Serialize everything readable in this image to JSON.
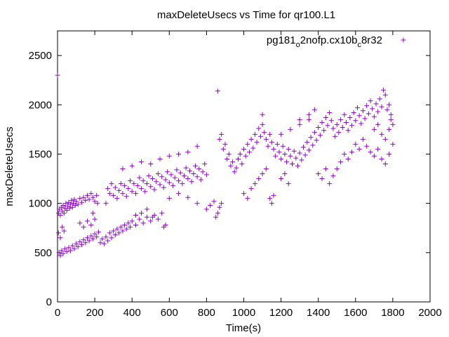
{
  "chart_data": {
    "type": "scatter",
    "title": "maxDeleteUsecs vs Time for qr100.L1",
    "xlabel": "Time(s)",
    "ylabel": "maxDeleteUsecs",
    "xlim": [
      0,
      2000
    ],
    "ylim": [
      0,
      2750
    ],
    "xticks": [
      0,
      200,
      400,
      600,
      800,
      1000,
      1200,
      1400,
      1600,
      1800,
      2000
    ],
    "yticks": [
      0,
      500,
      1000,
      1500,
      2000,
      2500
    ],
    "grid": false,
    "legend_position": "top-right",
    "series": [
      {
        "name_parts": {
          "a": "pg181",
          "b": "o",
          "c": "2nofp.cx10b",
          "d": "c",
          "e": "8r32"
        },
        "color": "#9400d3",
        "marker": "plus",
        "points": [
          [
            0,
            2300
          ],
          [
            5,
            900
          ],
          [
            10,
            940
          ],
          [
            15,
            880
          ],
          [
            20,
            960
          ],
          [
            25,
            920
          ],
          [
            30,
            980
          ],
          [
            35,
            900
          ],
          [
            40,
            950
          ],
          [
            45,
            1000
          ],
          [
            50,
            930
          ],
          [
            55,
            970
          ],
          [
            60,
            1010
          ],
          [
            65,
            950
          ],
          [
            70,
            990
          ],
          [
            75,
            1030
          ],
          [
            80,
            960
          ],
          [
            85,
            1000
          ],
          [
            90,
            1040
          ],
          [
            95,
            980
          ],
          [
            100,
            1020
          ],
          [
            110,
            990
          ],
          [
            120,
            1050
          ],
          [
            130,
            1010
          ],
          [
            140,
            1060
          ],
          [
            150,
            1030
          ],
          [
            160,
            1080
          ],
          [
            170,
            1040
          ],
          [
            180,
            1100
          ],
          [
            190,
            1060
          ],
          [
            200,
            1020
          ],
          [
            210,
            1080
          ],
          [
            215,
            1000
          ],
          [
            8,
            500
          ],
          [
            15,
            470
          ],
          [
            22,
            520
          ],
          [
            30,
            490
          ],
          [
            40,
            540
          ],
          [
            50,
            510
          ],
          [
            60,
            550
          ],
          [
            70,
            520
          ],
          [
            80,
            570
          ],
          [
            90,
            540
          ],
          [
            100,
            590
          ],
          [
            110,
            560
          ],
          [
            120,
            610
          ],
          [
            130,
            580
          ],
          [
            140,
            630
          ],
          [
            150,
            600
          ],
          [
            160,
            650
          ],
          [
            170,
            620
          ],
          [
            180,
            670
          ],
          [
            190,
            640
          ],
          [
            200,
            690
          ],
          [
            210,
            660
          ],
          [
            220,
            710
          ],
          [
            5,
            700
          ],
          [
            15,
            650
          ],
          [
            25,
            760
          ],
          [
            35,
            720
          ],
          [
            120,
            800
          ],
          [
            140,
            760
          ],
          [
            160,
            820
          ],
          [
            180,
            780
          ],
          [
            200,
            840
          ],
          [
            190,
            900
          ],
          [
            230,
            600
          ],
          [
            240,
            640
          ],
          [
            250,
            590
          ],
          [
            260,
            660
          ],
          [
            270,
            620
          ],
          [
            280,
            700
          ],
          [
            290,
            650
          ],
          [
            300,
            720
          ],
          [
            310,
            680
          ],
          [
            320,
            740
          ],
          [
            330,
            700
          ],
          [
            340,
            760
          ],
          [
            350,
            720
          ],
          [
            360,
            780
          ],
          [
            370,
            740
          ],
          [
            380,
            800
          ],
          [
            390,
            760
          ],
          [
            400,
            820
          ],
          [
            420,
            780
          ],
          [
            440,
            840
          ],
          [
            460,
            800
          ],
          [
            480,
            860
          ],
          [
            500,
            820
          ],
          [
            520,
            880
          ],
          [
            540,
            840
          ],
          [
            560,
            900
          ],
          [
            580,
            780
          ],
          [
            570,
            760
          ],
          [
            420,
            880
          ],
          [
            450,
            900
          ],
          [
            480,
            940
          ],
          [
            510,
            860
          ],
          [
            260,
            1000
          ],
          [
            270,
            1150
          ],
          [
            280,
            1100
          ],
          [
            290,
            1200
          ],
          [
            300,
            1080
          ],
          [
            310,
            1160
          ],
          [
            320,
            1050
          ],
          [
            330,
            1130
          ],
          [
            340,
            1200
          ],
          [
            350,
            1100
          ],
          [
            360,
            1180
          ],
          [
            370,
            1070
          ],
          [
            380,
            1150
          ],
          [
            390,
            1230
          ],
          [
            400,
            1120
          ],
          [
            410,
            1200
          ],
          [
            420,
            1100
          ],
          [
            430,
            1180
          ],
          [
            440,
            1260
          ],
          [
            450,
            1150
          ],
          [
            460,
            1230
          ],
          [
            470,
            1120
          ],
          [
            480,
            1200
          ],
          [
            490,
            1280
          ],
          [
            500,
            1170
          ],
          [
            510,
            1250
          ],
          [
            520,
            1140
          ],
          [
            530,
            1220
          ],
          [
            540,
            1300
          ],
          [
            550,
            1190
          ],
          [
            560,
            1270
          ],
          [
            570,
            1160
          ],
          [
            580,
            1240
          ],
          [
            590,
            1320
          ],
          [
            600,
            1210
          ],
          [
            610,
            1290
          ],
          [
            620,
            1180
          ],
          [
            630,
            1260
          ],
          [
            640,
            1340
          ],
          [
            650,
            1230
          ],
          [
            660,
            1310
          ],
          [
            670,
            1200
          ],
          [
            680,
            1280
          ],
          [
            690,
            1360
          ],
          [
            700,
            1250
          ],
          [
            710,
            1330
          ],
          [
            720,
            1220
          ],
          [
            730,
            1300
          ],
          [
            740,
            1380
          ],
          [
            750,
            1270
          ],
          [
            760,
            1350
          ],
          [
            770,
            1240
          ],
          [
            780,
            1320
          ],
          [
            790,
            1400
          ],
          [
            800,
            1290
          ],
          [
            350,
            1350
          ],
          [
            400,
            1380
          ],
          [
            450,
            1420
          ],
          [
            500,
            1400
          ],
          [
            550,
            1450
          ],
          [
            600,
            1480
          ],
          [
            650,
            1500
          ],
          [
            700,
            1520
          ],
          [
            750,
            1580
          ],
          [
            650,
            1100
          ],
          [
            700,
            1060
          ],
          [
            750,
            1000
          ],
          [
            600,
            1050
          ],
          [
            800,
            940
          ],
          [
            820,
            980
          ],
          [
            840,
            1020
          ],
          [
            850,
            860
          ],
          [
            860,
            900
          ],
          [
            870,
            960
          ],
          [
            880,
            1000
          ],
          [
            860,
            2140
          ],
          [
            870,
            1650
          ],
          [
            880,
            1700
          ],
          [
            890,
            1550
          ],
          [
            900,
            1600
          ],
          [
            910,
            1450
          ],
          [
            920,
            1500
          ],
          [
            930,
            1380
          ],
          [
            940,
            1420
          ],
          [
            950,
            1320
          ],
          [
            960,
            1360
          ],
          [
            970,
            1450
          ],
          [
            980,
            1500
          ],
          [
            990,
            1400
          ],
          [
            1000,
            1550
          ],
          [
            1010,
            1480
          ],
          [
            1020,
            1600
          ],
          [
            1030,
            1520
          ],
          [
            1040,
            1650
          ],
          [
            1050,
            1560
          ],
          [
            1060,
            1700
          ],
          [
            1070,
            1620
          ],
          [
            1080,
            1760
          ],
          [
            1090,
            1680
          ],
          [
            1100,
            1800
          ],
          [
            1110,
            1720
          ],
          [
            1120,
            1650
          ],
          [
            1130,
            1580
          ],
          [
            1140,
            1700
          ],
          [
            1150,
            1620
          ],
          [
            1160,
            1550
          ],
          [
            1170,
            1480
          ],
          [
            1180,
            1600
          ],
          [
            1190,
            1520
          ],
          [
            1200,
            1450
          ],
          [
            1210,
            1580
          ],
          [
            1220,
            1500
          ],
          [
            1230,
            1420
          ],
          [
            1240,
            1550
          ],
          [
            1250,
            1480
          ],
          [
            1260,
            1400
          ],
          [
            1270,
            1530
          ],
          [
            1280,
            1460
          ],
          [
            1290,
            1380
          ],
          [
            1300,
            1510
          ],
          [
            1310,
            1440
          ],
          [
            1320,
            1570
          ],
          [
            1330,
            1490
          ],
          [
            1340,
            1620
          ],
          [
            1350,
            1540
          ],
          [
            1360,
            1670
          ],
          [
            1370,
            1590
          ],
          [
            1380,
            1720
          ],
          [
            1390,
            1640
          ],
          [
            1400,
            1770
          ],
          [
            1410,
            1690
          ],
          [
            1420,
            1820
          ],
          [
            1430,
            1740
          ],
          [
            1440,
            1870
          ],
          [
            1450,
            1790
          ],
          [
            1460,
            1920
          ],
          [
            1470,
            1840
          ],
          [
            1480,
            1760
          ],
          [
            1490,
            1680
          ],
          [
            1500,
            1800
          ],
          [
            1510,
            1720
          ],
          [
            1520,
            1850
          ],
          [
            1530,
            1770
          ],
          [
            1540,
            1900
          ],
          [
            1550,
            1820
          ],
          [
            1560,
            1740
          ],
          [
            1570,
            1870
          ],
          [
            1580,
            1790
          ],
          [
            1590,
            1920
          ],
          [
            1600,
            1840
          ],
          [
            1610,
            1970
          ],
          [
            1620,
            1890
          ],
          [
            1630,
            1810
          ],
          [
            1640,
            1940
          ],
          [
            1650,
            1860
          ],
          [
            1660,
            1990
          ],
          [
            1670,
            1910
          ],
          [
            1680,
            2040
          ],
          [
            1690,
            1960
          ],
          [
            1700,
            1880
          ],
          [
            1710,
            2010
          ],
          [
            1720,
            1930
          ],
          [
            1730,
            2060
          ],
          [
            1740,
            1980
          ],
          [
            1750,
            2150
          ],
          [
            1760,
            2100
          ],
          [
            1770,
            1950
          ],
          [
            1780,
            2000
          ],
          [
            1790,
            1900
          ],
          [
            1800,
            1600
          ],
          [
            1200,
            1700
          ],
          [
            1250,
            1750
          ],
          [
            1300,
            1800
          ],
          [
            1350,
            1850
          ],
          [
            1400,
            1300
          ],
          [
            1420,
            1250
          ],
          [
            1440,
            1350
          ],
          [
            1460,
            1200
          ],
          [
            1480,
            1280
          ],
          [
            1500,
            1350
          ],
          [
            1520,
            1420
          ],
          [
            1540,
            1500
          ],
          [
            1560,
            1450
          ],
          [
            1580,
            1520
          ],
          [
            1600,
            1600
          ],
          [
            1620,
            1550
          ],
          [
            1640,
            1650
          ],
          [
            1660,
            1580
          ],
          [
            1680,
            1520
          ],
          [
            1700,
            1480
          ],
          [
            1720,
            1550
          ],
          [
            1740,
            1450
          ],
          [
            1760,
            1400
          ],
          [
            1780,
            1500
          ],
          [
            1140,
            1050
          ],
          [
            1150,
            1000
          ],
          [
            1160,
            1080
          ],
          [
            1000,
            1100
          ],
          [
            1020,
            1050
          ],
          [
            1040,
            1150
          ],
          [
            1060,
            1200
          ],
          [
            1080,
            1250
          ],
          [
            1100,
            1300
          ],
          [
            1120,
            1350
          ],
          [
            1200,
            1250
          ],
          [
            1220,
            1300
          ],
          [
            1240,
            1200
          ],
          [
            1100,
            1900
          ],
          [
            1300,
            1850
          ],
          [
            1350,
            1900
          ],
          [
            1380,
            1950
          ],
          [
            1700,
            1750
          ],
          [
            1720,
            1800
          ],
          [
            1740,
            1700
          ],
          [
            1760,
            1650
          ],
          [
            1780,
            1750
          ],
          [
            1790,
            1850
          ],
          [
            1800,
            1800
          ]
        ]
      }
    ]
  }
}
